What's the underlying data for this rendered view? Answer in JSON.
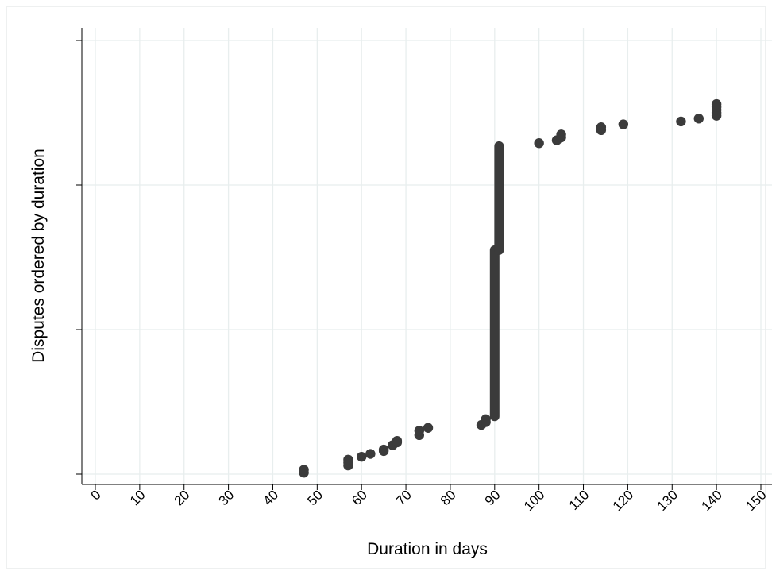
{
  "chart_data": {
    "type": "scatter",
    "xlabel": "Duration in days",
    "ylabel": "Disputes ordered by duration",
    "xlim": [
      0,
      150
    ],
    "ylim": [
      0,
      300
    ],
    "x_ticks": [
      0,
      10,
      20,
      30,
      40,
      50,
      60,
      70,
      80,
      90,
      100,
      110,
      120,
      130,
      140,
      150
    ],
    "x_tick_labels": [
      "0",
      "10",
      "20",
      "30",
      "40",
      "50",
      "60",
      "70",
      "80",
      "90",
      "100",
      "110",
      "120",
      "130",
      "140",
      "150"
    ],
    "y_ticks": [
      0,
      100,
      200,
      300
    ],
    "grid": true,
    "marker_color": "#3b3b3b",
    "grid_color": "#e8eeee",
    "points": [
      [
        47,
        1
      ],
      [
        47,
        3
      ],
      [
        57,
        6
      ],
      [
        57,
        8
      ],
      [
        57,
        10
      ],
      [
        60,
        12
      ],
      [
        62,
        14
      ],
      [
        65,
        16
      ],
      [
        65,
        17
      ],
      [
        67,
        20
      ],
      [
        68,
        22
      ],
      [
        68,
        23
      ],
      [
        73,
        27
      ],
      [
        73,
        30
      ],
      [
        75,
        32
      ],
      [
        87,
        34
      ],
      [
        88,
        36
      ],
      [
        88,
        38
      ],
      [
        100,
        229
      ],
      [
        104,
        231
      ],
      [
        105,
        233
      ],
      [
        105,
        235
      ],
      [
        114,
        238
      ],
      [
        114,
        240
      ],
      [
        119,
        242
      ],
      [
        132,
        244
      ],
      [
        136,
        246
      ],
      [
        140,
        248
      ],
      [
        140,
        250
      ],
      [
        140,
        252
      ],
      [
        140,
        254
      ],
      [
        140,
        256
      ]
    ],
    "vertical_runs": [
      {
        "x": 90,
        "y_from": 40,
        "y_to": 155
      },
      {
        "x": 91,
        "y_from": 155,
        "y_to": 227
      }
    ]
  }
}
